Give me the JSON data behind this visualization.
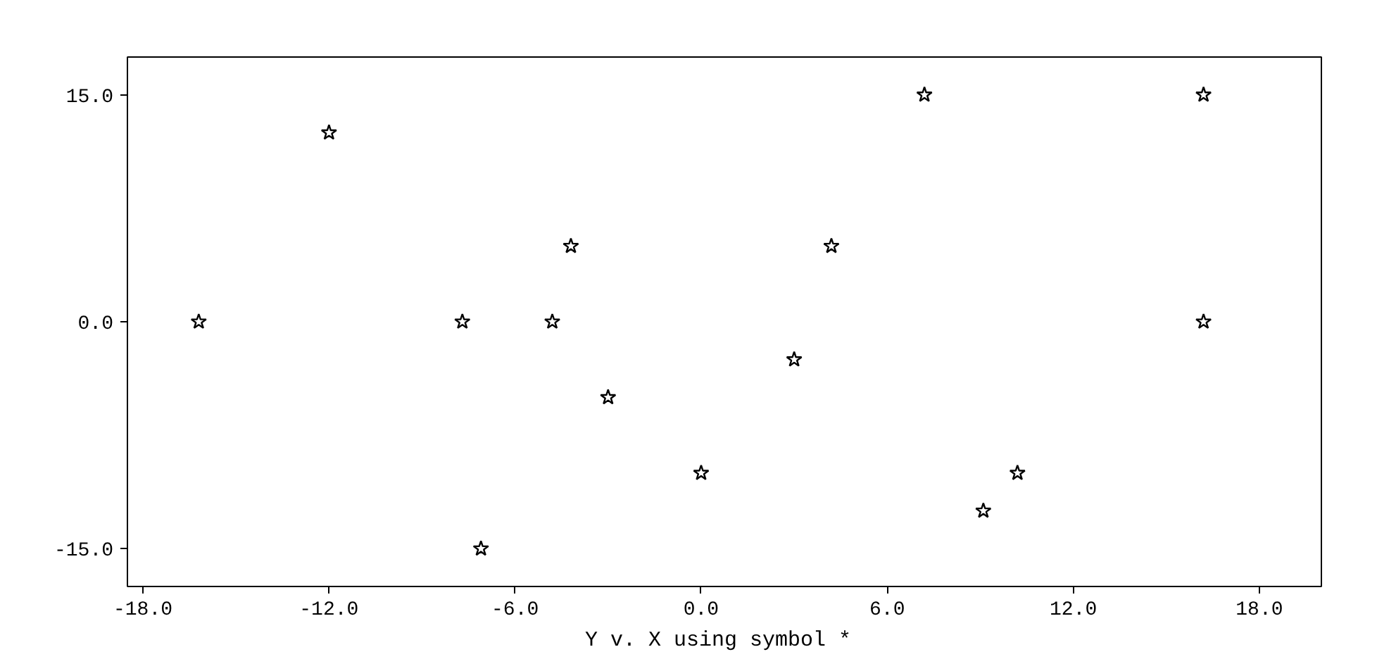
{
  "chart_data": {
    "type": "scatter",
    "title": "Y  v. X using symbol *",
    "x": [
      -16.2,
      -12,
      -7.7,
      -4.8,
      -4.2,
      -3,
      0,
      3,
      4.2,
      7.2,
      9.1,
      10.2,
      16.2,
      16.2,
      -7.1
    ],
    "series": [
      {
        "color": "#000000",
        "values": [
          0,
          12.5,
          0,
          0,
          5,
          -5,
          -10,
          -2.5,
          5,
          15,
          -12.5,
          -10,
          15,
          0,
          -15
        ]
      }
    ],
    "xlim": [
      -18.5,
      20
    ],
    "ylim": [
      -17.5,
      17.5
    ],
    "xticks": [
      {
        "value": -18,
        "label": "-18.0"
      },
      {
        "value": -12,
        "label": "-12.0"
      },
      {
        "value": -6,
        "label": "-6.0"
      },
      {
        "value": 0,
        "label": "0.0"
      },
      {
        "value": 6,
        "label": "6.0"
      },
      {
        "value": 12,
        "label": "12.0"
      },
      {
        "value": 18,
        "label": "18.0"
      }
    ],
    "yticks": [
      {
        "value": -15,
        "label": "-15.0"
      },
      {
        "value": 0,
        "label": "0.0"
      },
      {
        "value": 15,
        "label": "15.0"
      }
    ],
    "marker": "star",
    "grid": false
  }
}
